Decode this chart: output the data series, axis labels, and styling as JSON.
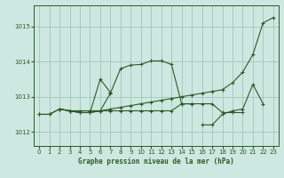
{
  "title": "Graphe pression niveau de la mer (hPa)",
  "background_color": "#cce8e0",
  "grid_color": "#9bbfb5",
  "line_color": "#2d5a27",
  "xlim": [
    -0.5,
    23.5
  ],
  "ylim": [
    1011.6,
    1015.6
  ],
  "yticks": [
    1012,
    1013,
    1014,
    1015
  ],
  "xticks": [
    0,
    1,
    2,
    3,
    4,
    5,
    6,
    7,
    8,
    9,
    10,
    11,
    12,
    13,
    14,
    15,
    16,
    17,
    18,
    19,
    20,
    21,
    22,
    23
  ],
  "s1x": [
    0,
    1,
    2,
    3,
    4,
    5,
    6,
    7,
    8,
    9,
    10,
    11,
    12,
    13,
    14,
    15
  ],
  "s1y": [
    1012.5,
    1012.5,
    1012.65,
    1012.6,
    1012.55,
    1012.55,
    1012.6,
    1013.1,
    1013.8,
    1013.9,
    1013.92,
    1014.02,
    1014.02,
    1013.92,
    1012.8,
    1012.8
  ],
  "s2x": [
    2,
    3,
    4,
    5,
    6,
    7,
    8,
    9,
    10,
    11,
    12,
    13,
    14,
    15,
    16,
    17,
    18,
    19,
    20
  ],
  "s2y": [
    1012.65,
    1012.6,
    1012.55,
    1012.55,
    1012.6,
    1012.6,
    1012.6,
    1012.6,
    1012.6,
    1012.6,
    1012.6,
    1012.6,
    1012.8,
    1012.8,
    1012.8,
    1012.8,
    1012.55,
    1012.55,
    1012.55
  ],
  "s3x": [
    2,
    3,
    4,
    5,
    6,
    7
  ],
  "s3y": [
    1012.65,
    1012.6,
    1012.55,
    1012.55,
    1013.5,
    1013.12
  ],
  "s4x": [
    0,
    1,
    2,
    3,
    4,
    5,
    6,
    7,
    8,
    9,
    10,
    11,
    12,
    13,
    14,
    15,
    16,
    17,
    18,
    19,
    20,
    21,
    22,
    23
  ],
  "s4y": [
    1012.5,
    1012.5,
    1012.65,
    1012.6,
    1012.6,
    1012.6,
    1012.6,
    1012.65,
    1012.7,
    1012.75,
    1012.8,
    1012.85,
    1012.9,
    1012.95,
    1013.0,
    1013.05,
    1013.1,
    1013.15,
    1013.2,
    1013.4,
    1013.7,
    1014.2,
    1015.1,
    1015.25
  ],
  "s5x": [
    16,
    17,
    18,
    19,
    20,
    21,
    22
  ],
  "s5y": [
    1012.2,
    1012.2,
    1012.5,
    1012.6,
    1012.65,
    1013.35,
    1012.8
  ]
}
